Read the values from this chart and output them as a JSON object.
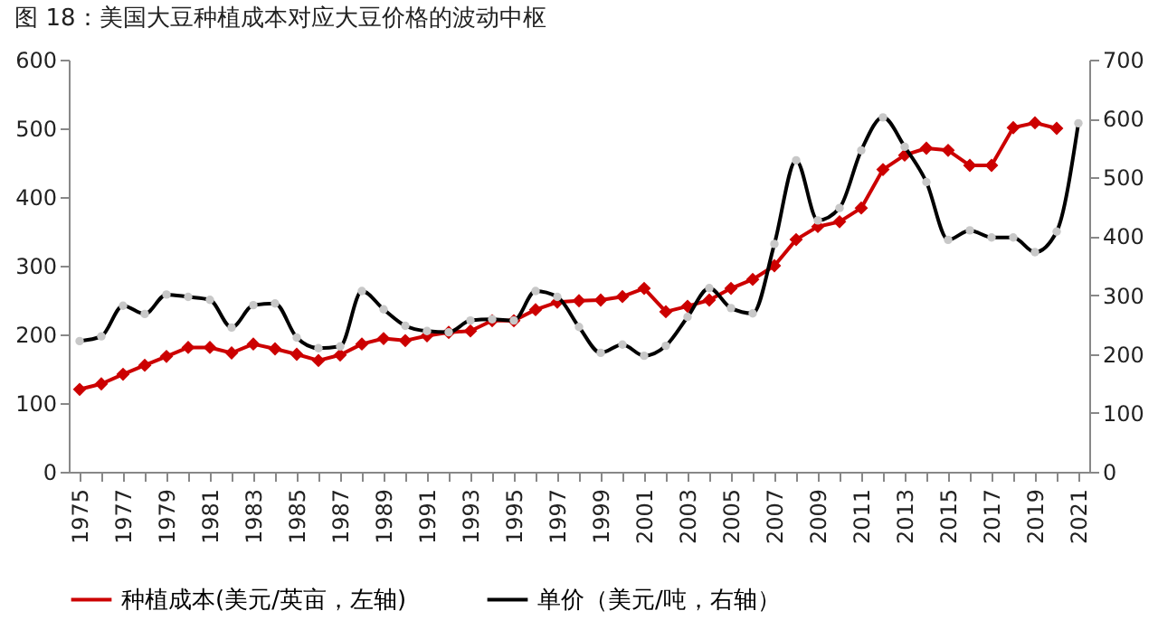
{
  "chart_data": {
    "type": "line",
    "title": "图 18：美国大豆种植成本对应大豆价格的波动中枢",
    "categories": [
      "1975",
      null,
      "1977",
      null,
      "1979",
      null,
      "1981",
      null,
      "1983",
      null,
      "1985",
      null,
      "1987",
      null,
      "1989",
      null,
      "1991",
      null,
      "1993",
      null,
      "1995",
      null,
      "1997",
      null,
      "1999",
      null,
      "2001",
      null,
      "2003",
      null,
      "2005",
      null,
      "2007",
      null,
      "2009",
      null,
      "2011",
      null,
      "2013",
      null,
      "2015",
      null,
      "2017",
      null,
      "2019",
      null,
      "2021"
    ],
    "series": [
      {
        "name": "种植成本(美元/英亩，左轴)",
        "color": "#cc0000",
        "marker": "diamond",
        "values": [
          120,
          128,
          142,
          155,
          168,
          181,
          181,
          173,
          186,
          179,
          171,
          162,
          170,
          186,
          194,
          191,
          198,
          203,
          205,
          220,
          220,
          236,
          247,
          249,
          250,
          255,
          267,
          233,
          241,
          250,
          267,
          280,
          300,
          338,
          357,
          364,
          384,
          440,
          461,
          471,
          468,
          446,
          446,
          501,
          508,
          500,
          null
        ]
      },
      {
        "name": "单价（美元/吨，右轴）",
        "color": "#000000",
        "marker": "circle",
        "axis": "y2",
        "values": [
          222,
          230,
          282,
          268,
          301,
          297,
          292,
          245,
          283,
          286,
          228,
          210,
          213,
          307,
          276,
          248,
          239,
          237,
          257,
          259,
          257,
          307,
          297,
          246,
          202,
          216,
          197,
          214,
          263,
          312,
          278,
          269,
          387,
          529,
          427,
          448,
          546,
          602,
          552,
          492,
          394,
          410,
          398,
          398,
          373,
          408,
          592
        ]
      }
    ],
    "ylim": [
      0,
      600
    ],
    "yticks": [
      0,
      100,
      200,
      300,
      400,
      500,
      600
    ],
    "y2lim": [
      0,
      700
    ],
    "y2ticks": [
      0,
      100,
      200,
      300,
      400,
      500,
      600,
      700
    ],
    "legend": "bottom",
    "grid": false
  }
}
